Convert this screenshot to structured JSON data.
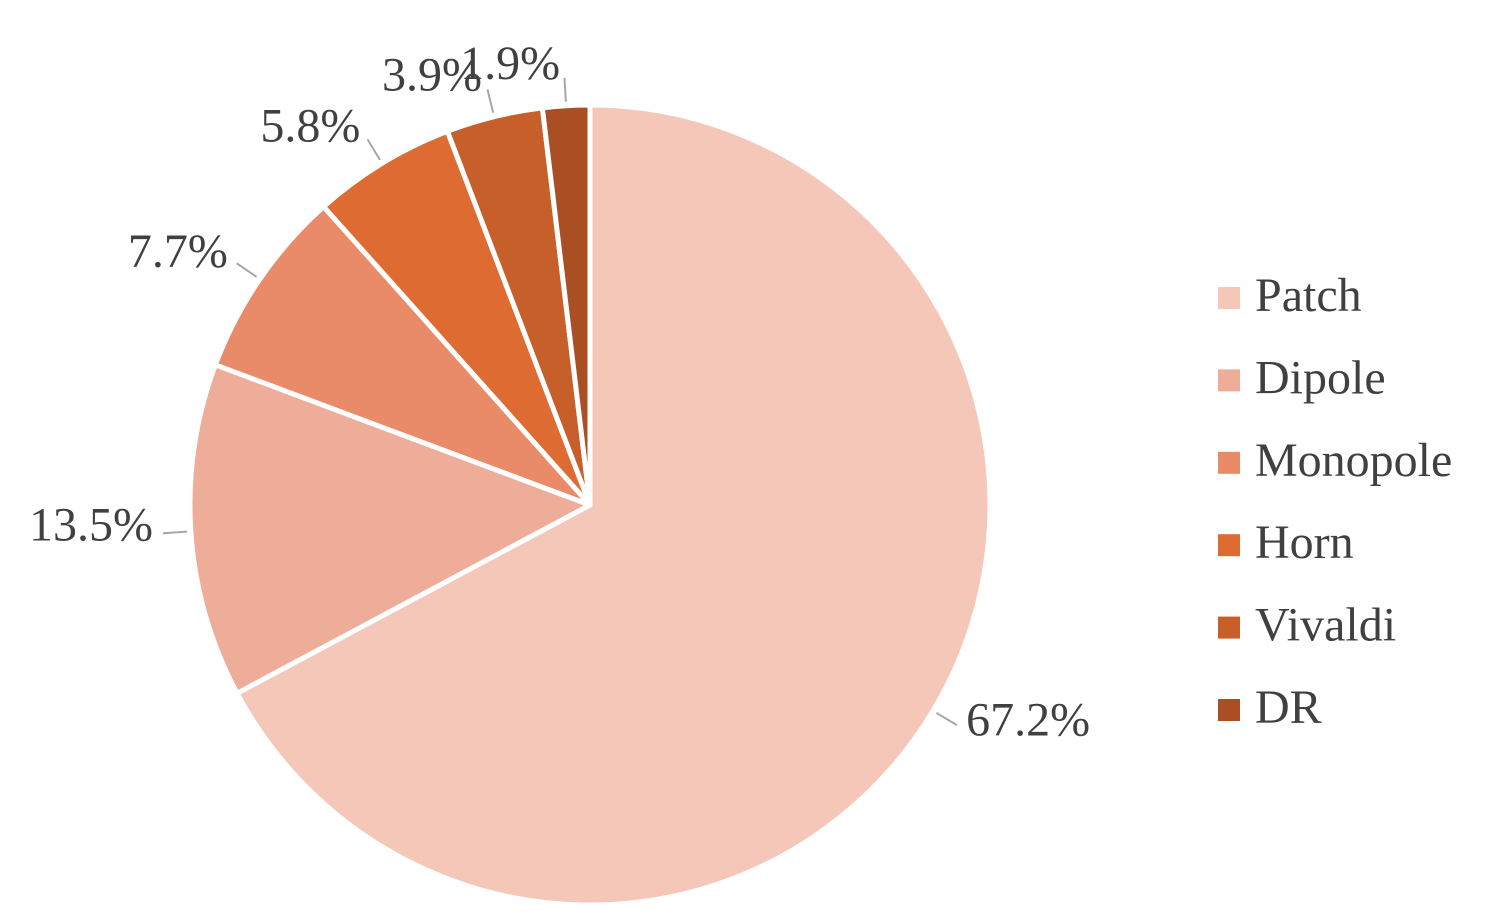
{
  "chart_data": {
    "type": "pie",
    "categories": [
      "Patch",
      "Dipole",
      "Monopole",
      "Horn",
      "Vivaldi",
      "DR"
    ],
    "values": [
      67.2,
      13.5,
      7.7,
      5.8,
      3.9,
      1.9
    ],
    "value_labels": [
      "67.2%",
      "13.5%",
      "7.7%",
      "5.8%",
      "3.9%",
      "1.9%"
    ],
    "colors": [
      "#f4c7b9",
      "#eead98",
      "#e98a68",
      "#de6c32",
      "#c65f2a",
      "#aa4f24"
    ],
    "legend": "right"
  }
}
